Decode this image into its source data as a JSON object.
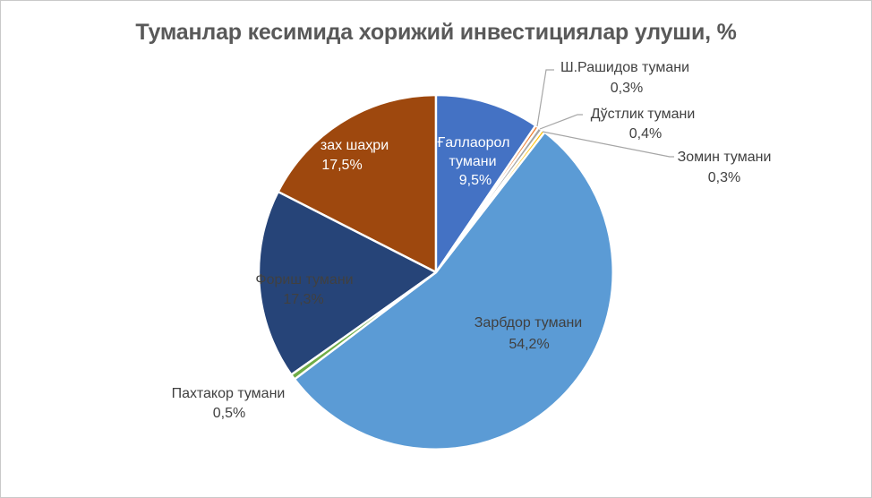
{
  "chart_data": {
    "type": "pie",
    "title": "Туманлар кесимида хорижий инвестициялар улуши, %",
    "unit": "%",
    "legend": "none",
    "start_angle_deg": 0,
    "direction": "clockwise",
    "slices": [
      {
        "label": "Ғаллаорол тумани",
        "value": 9.5,
        "display_pct": "9,5%",
        "color": "#4472C4"
      },
      {
        "label": "Ш.Рашидов тумани",
        "value": 0.3,
        "display_pct": "0,3%",
        "color": "#ED7D31"
      },
      {
        "label": "Дўстлик тумани",
        "value": 0.4,
        "display_pct": "0,4%",
        "color": "#A5A5A5"
      },
      {
        "label": "Зомин тумани",
        "value": 0.3,
        "display_pct": "0,3%",
        "color": "#FFC000"
      },
      {
        "label": "Зарбдор тумани",
        "value": 54.2,
        "display_pct": "54,2%",
        "color": "#5B9BD5"
      },
      {
        "label": "Пахтакор тумани",
        "value": 0.5,
        "display_pct": "0,5%",
        "color": "#70AD47"
      },
      {
        "label": "Фориш тумани",
        "value": 17.3,
        "display_pct": "17,3%",
        "color": "#264478"
      },
      {
        "label": "зах шаҳри",
        "value": 17.5,
        "display_pct": "17,5%",
        "color": "#9E480E"
      }
    ],
    "colors": {
      "title_text": "#595959",
      "label_dark": "#404040",
      "label_light": "#FFFFFF",
      "leader_line": "#A6A6A6",
      "slice_border": "#FFFFFF",
      "background": "#FFFFFF",
      "frame_border": "#C9C9C9"
    }
  }
}
